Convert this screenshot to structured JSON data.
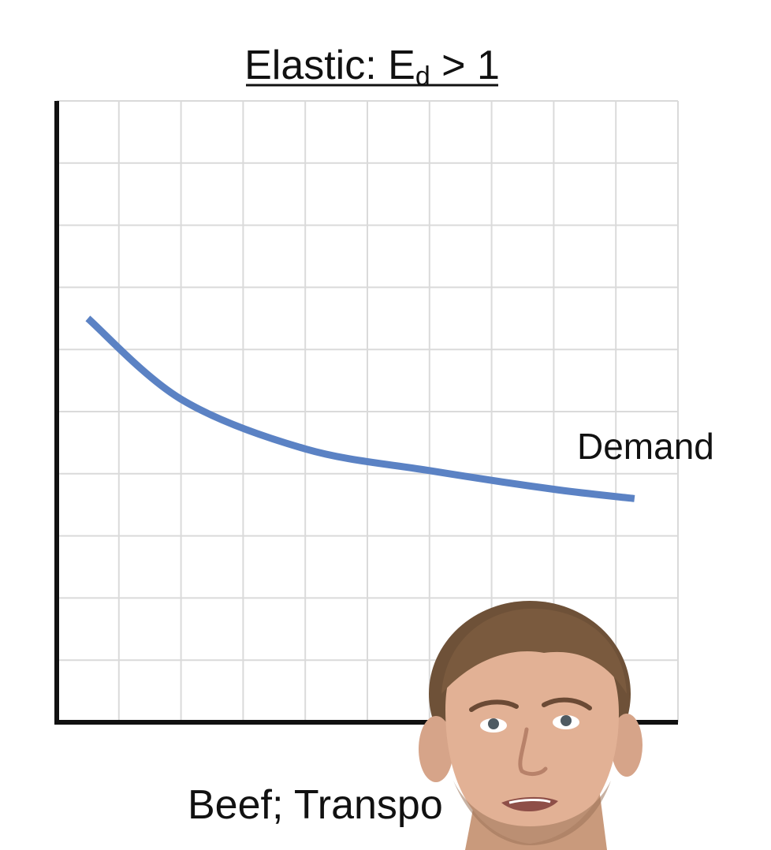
{
  "chart_data": {
    "type": "line",
    "title": {
      "prefix": "Elastic: E",
      "subscript": "d",
      "suffix": " > 1"
    },
    "xlabel": "Beef; Transpo",
    "ylabel": "",
    "xlim": [
      0,
      10
    ],
    "ylim": [
      0,
      10
    ],
    "grid": true,
    "series": [
      {
        "name": "Demand",
        "color": "#5b82c4",
        "x": [
          0.5,
          2.0,
          4.0,
          6.0,
          8.0,
          9.3
        ],
        "y": [
          6.5,
          5.2,
          4.4,
          4.05,
          3.75,
          3.6
        ]
      }
    ]
  },
  "overlay": {
    "type": "presenter-webcam",
    "description_icon": "presenter-face"
  }
}
